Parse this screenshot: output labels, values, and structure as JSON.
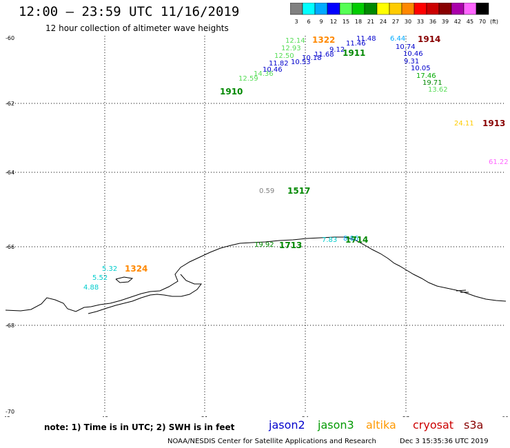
{
  "title": "12:00 – 23:59 UTC 11/16/2019",
  "subtitle": "12 hour collection of altimeter wave heights",
  "colorbar": {
    "unit": "(ft)",
    "bins": [
      {
        "label": "3",
        "color": "#808080"
      },
      {
        "label": "6",
        "color": "#00ffff"
      },
      {
        "label": "9",
        "color": "#00aaff"
      },
      {
        "label": "12",
        "color": "#0000ff"
      },
      {
        "label": "15",
        "color": "#55ff55"
      },
      {
        "label": "18",
        "color": "#00cc00"
      },
      {
        "label": "21",
        "color": "#008800"
      },
      {
        "label": "24",
        "color": "#ffff00"
      },
      {
        "label": "27",
        "color": "#ffcc00"
      },
      {
        "label": "30",
        "color": "#ff8800"
      },
      {
        "label": "33",
        "color": "#ff0000"
      },
      {
        "label": "36",
        "color": "#cc0000"
      },
      {
        "label": "39",
        "color": "#880000"
      },
      {
        "label": "42",
        "color": "#aa00aa"
      },
      {
        "label": "45",
        "color": "#ff66ff"
      },
      {
        "label": "70",
        "color": "#000000"
      }
    ]
  },
  "axes": {
    "lat_ticks": [
      "-60",
      "-62",
      "-64",
      "-66",
      "-68",
      "-70"
    ],
    "lon_ticks": [
      "45",
      "48",
      "51",
      "54",
      "57",
      "60"
    ]
  },
  "observations": [
    {
      "v": "12.14",
      "color": "#55dd55"
    },
    {
      "v": "12.93",
      "color": "#55dd55"
    },
    {
      "v": "12.50",
      "color": "#55dd55"
    },
    {
      "v": "11.82",
      "color": "#0000cc"
    },
    {
      "v": "14.36",
      "color": "#55dd55"
    },
    {
      "v": "12.59",
      "color": "#55dd55"
    },
    {
      "v": "10.46",
      "color": "#0000cc"
    },
    {
      "v": "10.53",
      "color": "#0000cc"
    },
    {
      "v": "10.18",
      "color": "#0000cc"
    },
    {
      "v": "11.68",
      "color": "#0000cc"
    },
    {
      "v": "9.12",
      "color": "#0000cc"
    },
    {
      "v": "11.46",
      "color": "#0000cc"
    },
    {
      "v": "11.48",
      "color": "#0000cc"
    },
    {
      "v": "6.44",
      "color": "#00aaff"
    },
    {
      "v": "10.74",
      "color": "#0000cc"
    },
    {
      "v": "10.46",
      "color": "#0000cc"
    },
    {
      "v": "9.31",
      "color": "#0000cc"
    },
    {
      "v": "10.05",
      "color": "#0000cc"
    },
    {
      "v": "17.46",
      "color": "#00aa00"
    },
    {
      "v": "19.71",
      "color": "#008800"
    },
    {
      "v": "13.62",
      "color": "#55dd55"
    },
    {
      "v": "24.11",
      "color": "#ffcc00"
    },
    {
      "v": "61.22",
      "color": "#ff66ff"
    },
    {
      "v": "0.59",
      "color": "#808080"
    },
    {
      "v": "19.92",
      "color": "#008800"
    },
    {
      "v": "7.83",
      "color": "#00cccc"
    },
    {
      "v": "8.86",
      "color": "#00aaff"
    },
    {
      "v": "5.32",
      "color": "#00cccc"
    },
    {
      "v": "5.52",
      "color": "#00cccc"
    },
    {
      "v": "4.88",
      "color": "#00cccc"
    }
  ],
  "times": [
    {
      "t": "1322",
      "color": "#ff8800"
    },
    {
      "t": "1911",
      "color": "#008800"
    },
    {
      "t": "1910",
      "color": "#008800"
    },
    {
      "t": "1914",
      "color": "#880000"
    },
    {
      "t": "1913",
      "color": "#880000"
    },
    {
      "t": "1517",
      "color": "#008800"
    },
    {
      "t": "1713",
      "color": "#008800"
    },
    {
      "t": "1714",
      "color": "#008800"
    },
    {
      "t": "1324",
      "color": "#ff8800"
    }
  ],
  "note": "note:  1) Time is in UTC;  2) SWH is in feet",
  "satellites": [
    {
      "name": "jason2",
      "color": "#0000cc"
    },
    {
      "name": "jason3",
      "color": "#009900"
    },
    {
      "name": "altika",
      "color": "#ff9900"
    },
    {
      "name": "cryosat",
      "color": "#cc0000"
    },
    {
      "name": "s3a",
      "color": "#880000"
    }
  ],
  "footer_left": "NOAA/NESDIS Center for Satellite Applications and Research",
  "footer_right": "Dec  3 15:35:36 UTC 2019"
}
